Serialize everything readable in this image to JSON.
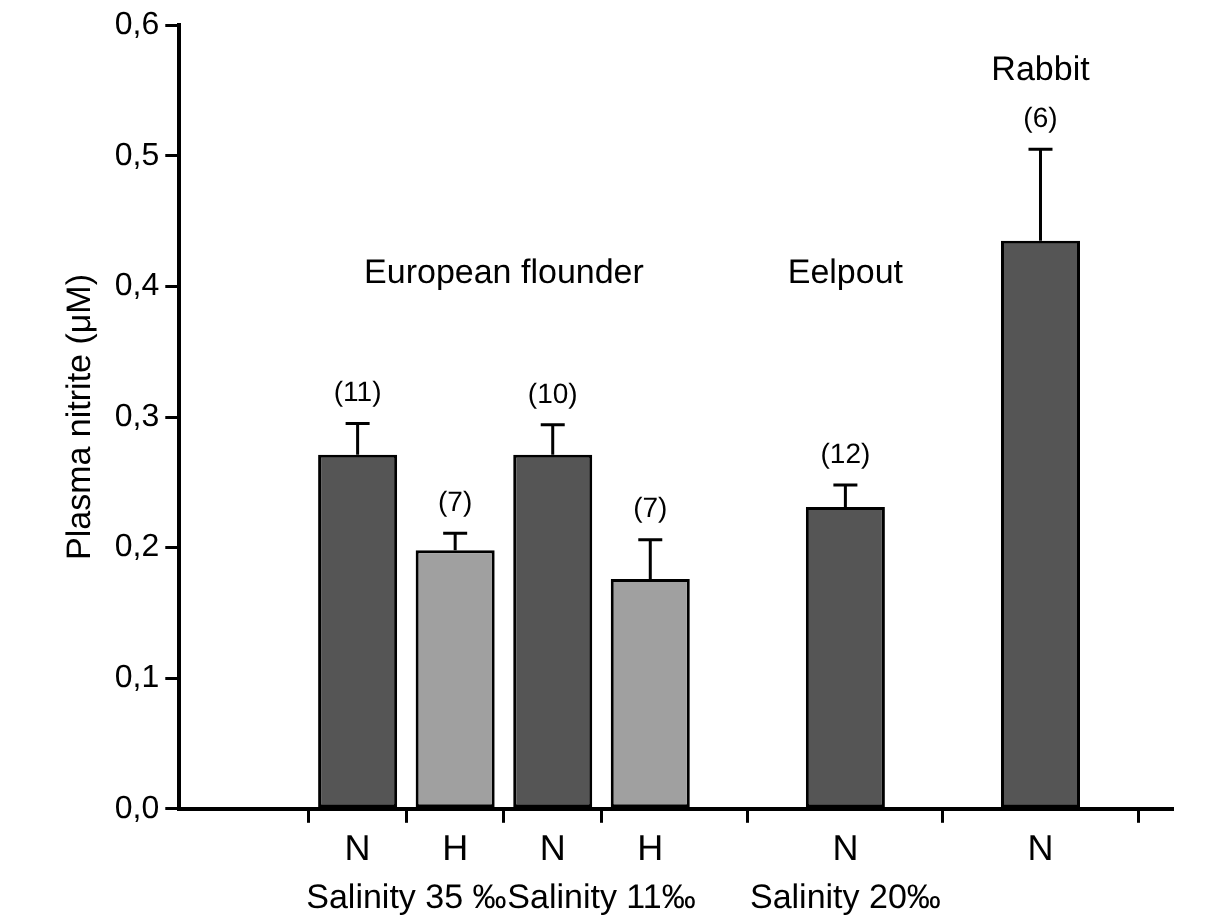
{
  "chart_data": {
    "type": "bar",
    "ylabel": "Plasma nitrite (μM)",
    "categories": [
      "N",
      "H",
      "N",
      "H",
      null,
      "N",
      null,
      "N"
    ],
    "values": [
      0.271,
      0.198,
      0.271,
      0.176,
      null,
      0.231,
      null,
      0.435
    ],
    "colors": [
      "#555555",
      "#a0a0a0",
      "#555555",
      "#a0a0a0",
      null,
      "#555555",
      null,
      "#555555"
    ],
    "errors": [
      [
        0.271,
        0.295
      ],
      [
        0.198,
        0.211
      ],
      [
        0.271,
        0.294
      ],
      [
        0.176,
        0.206
      ],
      null,
      [
        0.231,
        0.248
      ],
      null,
      [
        0.435,
        0.505
      ]
    ],
    "ylim": [
      0,
      0.6
    ],
    "yticks": [
      {
        "value": 0,
        "label": "0,0"
      },
      {
        "value": 0.1,
        "label": "0,1"
      },
      {
        "value": 0.2,
        "label": "0,2"
      },
      {
        "value": 0.3,
        "label": "0,3"
      },
      {
        "value": 0.4,
        "label": "0,4"
      },
      {
        "value": 0.5,
        "label": "0,5"
      },
      {
        "value": 0.6,
        "label": "0,6"
      }
    ],
    "grid": false,
    "legend": false,
    "annotations": [
      "European flounder",
      "Eelpout",
      "Rabbit",
      "Salinity 35 ‰",
      "Salinity 11‰",
      "Salinity 20‰",
      "(11)",
      "(7)",
      "(10)",
      "(7)",
      "(12)",
      "(6)"
    ]
  }
}
